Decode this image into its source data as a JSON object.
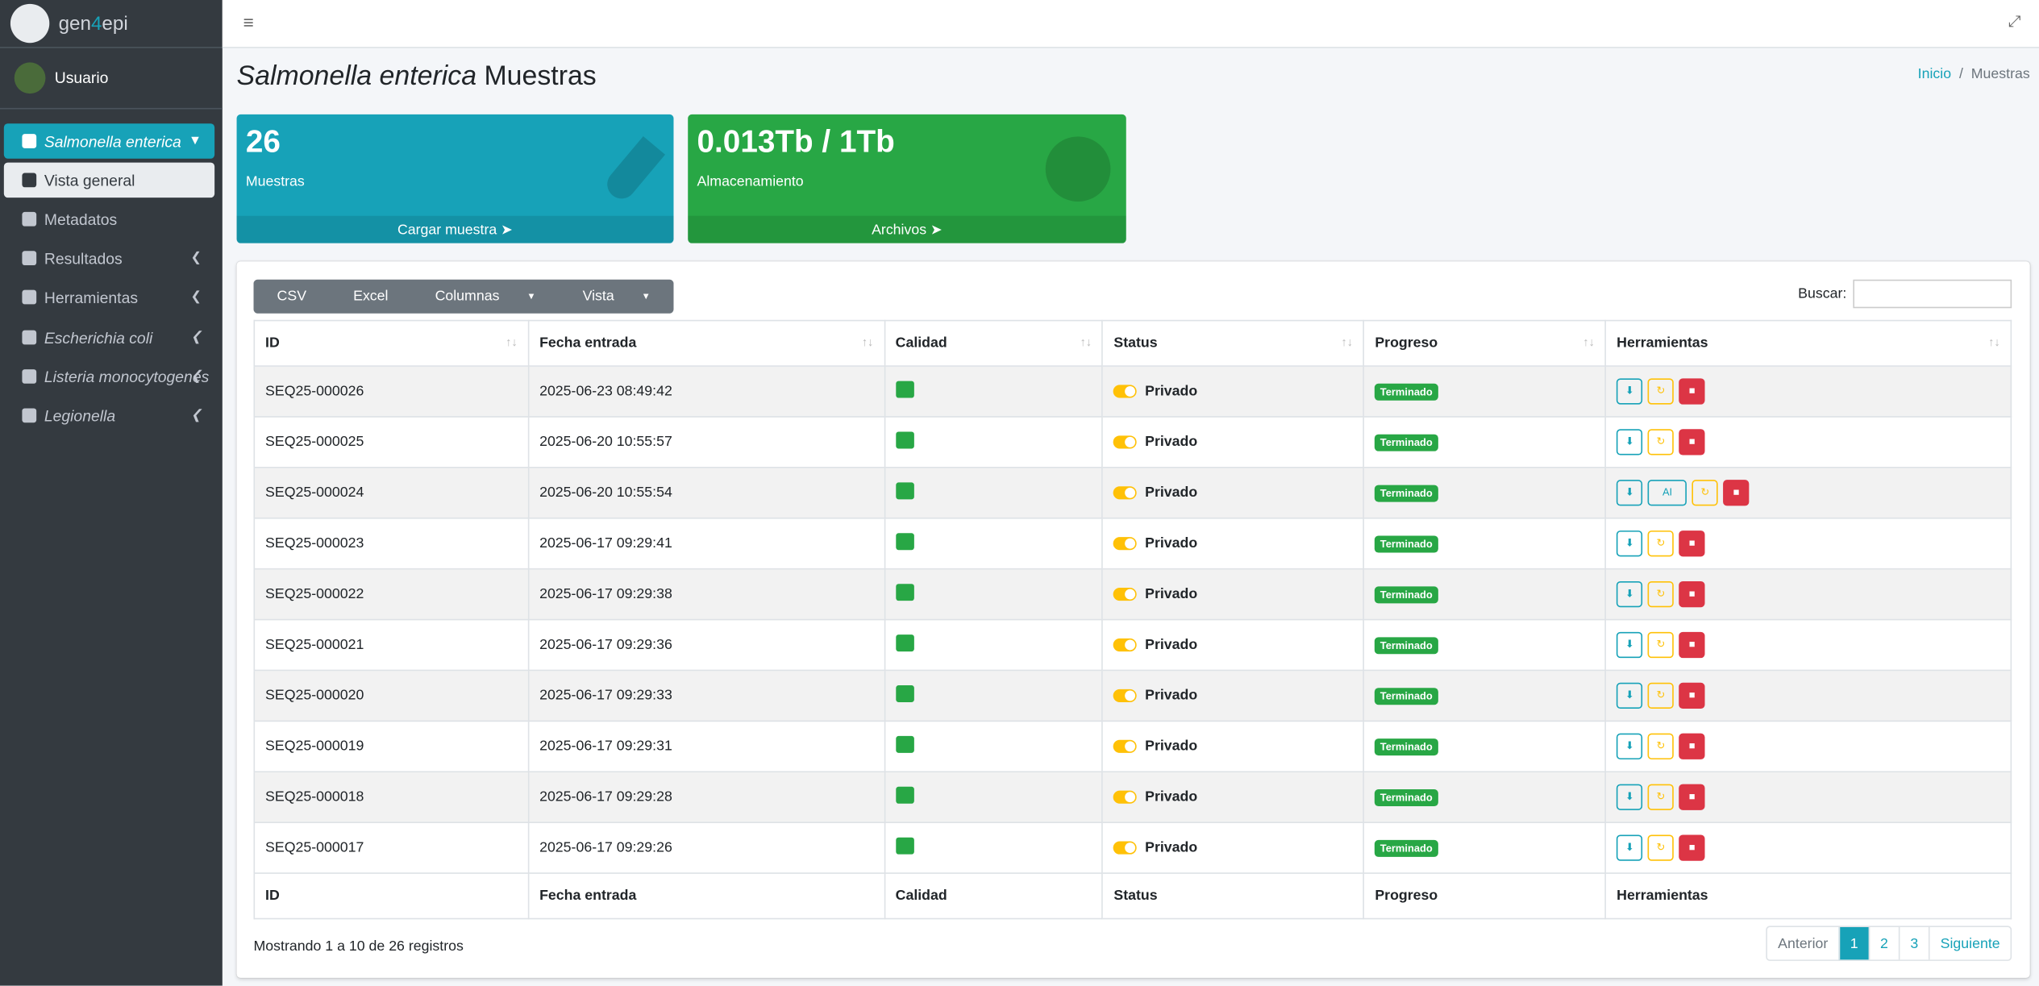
{
  "sidebar": {
    "brand": [
      "gen",
      "4",
      "epi"
    ],
    "user": "Usuario",
    "species": "Salmonella enterica",
    "submenu": [
      "Vista general",
      "Metadatos",
      "Resultados",
      "Herramientas"
    ],
    "other_species": [
      "Escherichia coli",
      "Listeria monocytogenes",
      "Legionella"
    ]
  },
  "header": {
    "title_species": "Salmonella enterica",
    "title_rest": "Muestras",
    "breadcrumb": [
      "Inicio",
      "Muestras"
    ]
  },
  "cards": [
    {
      "value": "26",
      "label": "Muestras",
      "link": "Cargar muestra"
    },
    {
      "value": "0.013Tb / 1Tb",
      "label": "Almacenamiento",
      "link": "Archivos"
    }
  ],
  "toolbar": {
    "buttons": [
      "CSV",
      "Excel",
      "Columnas",
      "Vista"
    ],
    "search": "Buscar:"
  },
  "table": {
    "columns": [
      "ID",
      "Fecha entrada",
      "Calidad",
      "Status",
      "Progreso",
      "Herramientas"
    ],
    "rows": [
      {
        "id": "SEQ25-000026",
        "fecha": "2025-06-23 08:49:42",
        "status": "Privado",
        "progreso": "Terminado"
      },
      {
        "id": "SEQ25-000025",
        "fecha": "2025-06-20 10:55:57",
        "status": "Privado",
        "progreso": "Terminado"
      },
      {
        "id": "SEQ25-000024",
        "fecha": "2025-06-20 10:55:54",
        "status": "Privado",
        "progreso": "Terminado",
        "ai": "AI"
      },
      {
        "id": "SEQ25-000023",
        "fecha": "2025-06-17 09:29:41",
        "status": "Privado",
        "progreso": "Terminado"
      },
      {
        "id": "SEQ25-000022",
        "fecha": "2025-06-17 09:29:38",
        "status": "Privado",
        "progreso": "Terminado"
      },
      {
        "id": "SEQ25-000021",
        "fecha": "2025-06-17 09:29:36",
        "status": "Privado",
        "progreso": "Terminado"
      },
      {
        "id": "SEQ25-000020",
        "fecha": "2025-06-17 09:29:33",
        "status": "Privado",
        "progreso": "Terminado"
      },
      {
        "id": "SEQ25-000019",
        "fecha": "2025-06-17 09:29:31",
        "status": "Privado",
        "progreso": "Terminado"
      },
      {
        "id": "SEQ25-000018",
        "fecha": "2025-06-17 09:29:28",
        "status": "Privado",
        "progreso": "Terminado"
      },
      {
        "id": "SEQ25-000017",
        "fecha": "2025-06-17 09:29:26",
        "status": "Privado",
        "progreso": "Terminado"
      }
    ]
  },
  "footer": {
    "info": "Mostrando 1 a 10 de 26 registros",
    "pagination": [
      "Anterior",
      "1",
      "2",
      "3",
      "Siguiente"
    ]
  }
}
